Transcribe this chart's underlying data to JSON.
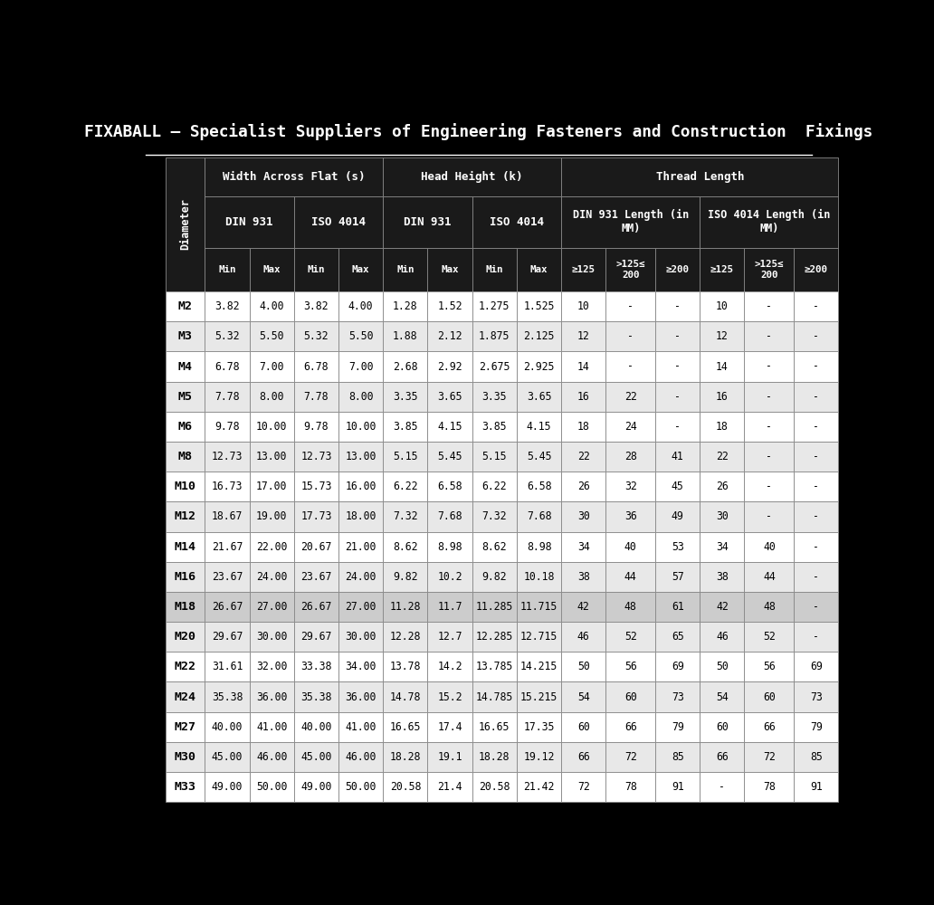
{
  "title": "FIXABALL – Specialist Suppliers of Engineering Fasteners and Construction  Fixings",
  "background_color": "#000000",
  "header_bg": "#1a1a1a",
  "header_text_color": "#ffffff",
  "diameter_label": "Diameter",
  "highlight_row": "M18",
  "col_header1": [
    "Width Across Flat (s)",
    "Head Height (k)",
    "Thread Length"
  ],
  "col_header2": [
    "DIN 931",
    "ISO 4014",
    "DIN 931",
    "ISO 4014",
    "DIN 931 Length (in\nMM)",
    "ISO 4014 Length (in\nMM)"
  ],
  "col_header3": [
    "Min",
    "Max",
    "Min",
    "Max",
    "Min",
    "Max",
    "Min",
    "Max",
    "≥125",
    ">125≤\n200",
    "≥200",
    "≥125",
    ">125≤\n200",
    "≥200"
  ],
  "rows": [
    [
      "M2",
      "3.82",
      "4.00",
      "3.82",
      "4.00",
      "1.28",
      "1.52",
      "1.275",
      "1.525",
      "10",
      "-",
      "-",
      "10",
      "-",
      "-"
    ],
    [
      "M3",
      "5.32",
      "5.50",
      "5.32",
      "5.50",
      "1.88",
      "2.12",
      "1.875",
      "2.125",
      "12",
      "-",
      "-",
      "12",
      "-",
      "-"
    ],
    [
      "M4",
      "6.78",
      "7.00",
      "6.78",
      "7.00",
      "2.68",
      "2.92",
      "2.675",
      "2.925",
      "14",
      "-",
      "-",
      "14",
      "-",
      "-"
    ],
    [
      "M5",
      "7.78",
      "8.00",
      "7.78",
      "8.00",
      "3.35",
      "3.65",
      "3.35",
      "3.65",
      "16",
      "22",
      "-",
      "16",
      "-",
      "-"
    ],
    [
      "M6",
      "9.78",
      "10.00",
      "9.78",
      "10.00",
      "3.85",
      "4.15",
      "3.85",
      "4.15",
      "18",
      "24",
      "-",
      "18",
      "-",
      "-"
    ],
    [
      "M8",
      "12.73",
      "13.00",
      "12.73",
      "13.00",
      "5.15",
      "5.45",
      "5.15",
      "5.45",
      "22",
      "28",
      "41",
      "22",
      "-",
      "-"
    ],
    [
      "M10",
      "16.73",
      "17.00",
      "15.73",
      "16.00",
      "6.22",
      "6.58",
      "6.22",
      "6.58",
      "26",
      "32",
      "45",
      "26",
      "-",
      "-"
    ],
    [
      "M12",
      "18.67",
      "19.00",
      "17.73",
      "18.00",
      "7.32",
      "7.68",
      "7.32",
      "7.68",
      "30",
      "36",
      "49",
      "30",
      "-",
      "-"
    ],
    [
      "M14",
      "21.67",
      "22.00",
      "20.67",
      "21.00",
      "8.62",
      "8.98",
      "8.62",
      "8.98",
      "34",
      "40",
      "53",
      "34",
      "40",
      "-"
    ],
    [
      "M16",
      "23.67",
      "24.00",
      "23.67",
      "24.00",
      "9.82",
      "10.2",
      "9.82",
      "10.18",
      "38",
      "44",
      "57",
      "38",
      "44",
      "-"
    ],
    [
      "M18",
      "26.67",
      "27.00",
      "26.67",
      "27.00",
      "11.28",
      "11.7",
      "11.285",
      "11.715",
      "42",
      "48",
      "61",
      "42",
      "48",
      "-"
    ],
    [
      "M20",
      "29.67",
      "30.00",
      "29.67",
      "30.00",
      "12.28",
      "12.7",
      "12.285",
      "12.715",
      "46",
      "52",
      "65",
      "46",
      "52",
      "-"
    ],
    [
      "M22",
      "31.61",
      "32.00",
      "33.38",
      "34.00",
      "13.78",
      "14.2",
      "13.785",
      "14.215",
      "50",
      "56",
      "69",
      "50",
      "56",
      "69"
    ],
    [
      "M24",
      "35.38",
      "36.00",
      "35.38",
      "36.00",
      "14.78",
      "15.2",
      "14.785",
      "15.215",
      "54",
      "60",
      "73",
      "54",
      "60",
      "73"
    ],
    [
      "M27",
      "40.00",
      "41.00",
      "40.00",
      "41.00",
      "16.65",
      "17.4",
      "16.65",
      "17.35",
      "60",
      "66",
      "79",
      "60",
      "66",
      "79"
    ],
    [
      "M30",
      "45.00",
      "46.00",
      "45.00",
      "46.00",
      "18.28",
      "19.1",
      "18.28",
      "19.12",
      "66",
      "72",
      "85",
      "66",
      "72",
      "85"
    ],
    [
      "M33",
      "49.00",
      "50.00",
      "49.00",
      "50.00",
      "20.58",
      "21.4",
      "20.58",
      "21.42",
      "72",
      "78",
      "91",
      "-",
      "78",
      "91"
    ]
  ]
}
